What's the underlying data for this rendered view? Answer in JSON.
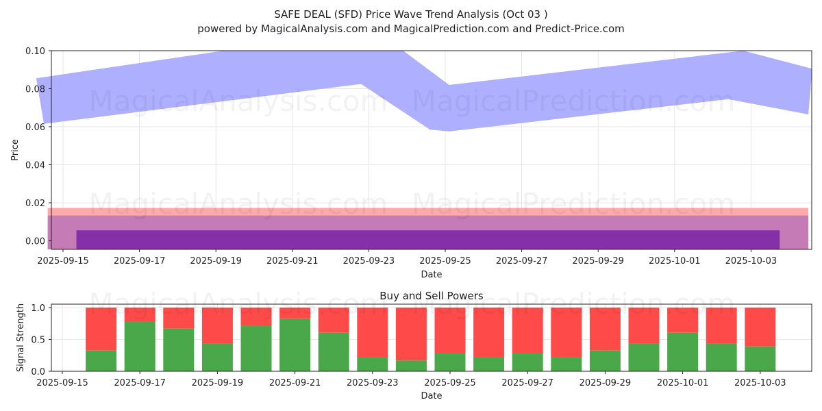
{
  "title": "SAFE DEAL (SFD) Price Wave Trend Analysis (Oct 03 )",
  "subtitle": "powered by MagicalAnalysis.com and MagicalPrediction.com and Predict-Price.com",
  "watermarks": [
    "MagicalAnalysis.com",
    "MagicalPrediction.com"
  ],
  "colors": {
    "wave_band": "#aeb0ff",
    "light_red": "#ffaaaa",
    "mauve": "#c57bb6",
    "purple": "#8630a8",
    "buy": "#4aa84a",
    "sell": "#ff4a4a"
  },
  "chart_data": [
    {
      "type": "area",
      "name": "price-wave",
      "xlabel": "Date",
      "ylabel": "Price",
      "ylim": [
        -0.0045,
        0.1
      ],
      "yticks": [
        0.0,
        0.02,
        0.04,
        0.06,
        0.08,
        0.1
      ],
      "ytick_labels": [
        "0.00",
        "0.02",
        "0.04",
        "0.06",
        "0.08",
        "0.10"
      ],
      "xlim": [
        "2025-09-14.2",
        "2025-10-04.1"
      ],
      "xticks": [
        "2025-09-15",
        "2025-09-17",
        "2025-09-19",
        "2025-09-21",
        "2025-09-23",
        "2025-09-25",
        "2025-09-27",
        "2025-09-29",
        "2025-10-01",
        "2025-10-03"
      ],
      "grid": true,
      "series": [
        {
          "name": "wave-band",
          "upper": [
            [
              -0.7,
              0.0855
            ],
            [
              4.2,
              0.1
            ],
            [
              8.9,
              0.1
            ],
            [
              10.1,
              0.082
            ],
            [
              17.8,
              0.1
            ],
            [
              19.6,
              0.0905
            ]
          ],
          "lower": [
            [
              -0.5,
              0.0615
            ],
            [
              7.8,
              0.0825
            ],
            [
              9.6,
              0.0585
            ],
            [
              10.1,
              0.0575
            ],
            [
              17.4,
              0.0745
            ],
            [
              19.5,
              0.0665
            ]
          ]
        },
        {
          "name": "band-light-red",
          "x_start": -0.4,
          "x_end": 19.5,
          "top": 0.0173,
          "bottom": -0.0045
        },
        {
          "name": "band-mauve",
          "x_start": -0.4,
          "x_end": 19.5,
          "top": 0.0133,
          "bottom": -0.0045
        },
        {
          "name": "band-purple",
          "x_start": 0.35,
          "x_end": 18.75,
          "top": 0.0055,
          "bottom": -0.0045
        }
      ]
    },
    {
      "type": "bar",
      "name": "buy-sell-powers",
      "title": "Buy and Sell Powers",
      "xlabel": "Date",
      "ylabel": "Signal Strength",
      "ylim": [
        0,
        1.05
      ],
      "yticks": [
        0.0,
        0.5,
        1.0
      ],
      "ytick_labels": [
        "0.0",
        "0.5",
        "1.0"
      ],
      "xticks": [
        "2025-09-15",
        "2025-09-17",
        "2025-09-19",
        "2025-09-21",
        "2025-09-23",
        "2025-09-25",
        "2025-09-27",
        "2025-09-29",
        "2025-10-01",
        "2025-10-03"
      ],
      "grid": true,
      "categories": [
        "2025-09-16",
        "2025-09-17",
        "2025-09-18",
        "2025-09-19",
        "2025-09-20",
        "2025-09-21",
        "2025-09-22",
        "2025-09-23",
        "2025-09-24",
        "2025-09-25",
        "2025-09-26",
        "2025-09-27",
        "2025-09-28",
        "2025-09-29",
        "2025-09-30",
        "2025-10-01",
        "2025-10-02",
        "2025-10-03"
      ],
      "series": [
        {
          "name": "Buy",
          "values": [
            0.33,
            0.78,
            0.67,
            0.44,
            0.72,
            0.83,
            0.61,
            0.22,
            0.17,
            0.28,
            0.22,
            0.28,
            0.22,
            0.33,
            0.44,
            0.61,
            0.44,
            0.39
          ]
        },
        {
          "name": "Sell",
          "values": [
            0.67,
            0.22,
            0.33,
            0.56,
            0.28,
            0.17,
            0.39,
            0.78,
            0.83,
            0.72,
            0.78,
            0.72,
            0.78,
            0.67,
            0.56,
            0.39,
            0.56,
            0.61
          ]
        }
      ]
    }
  ]
}
